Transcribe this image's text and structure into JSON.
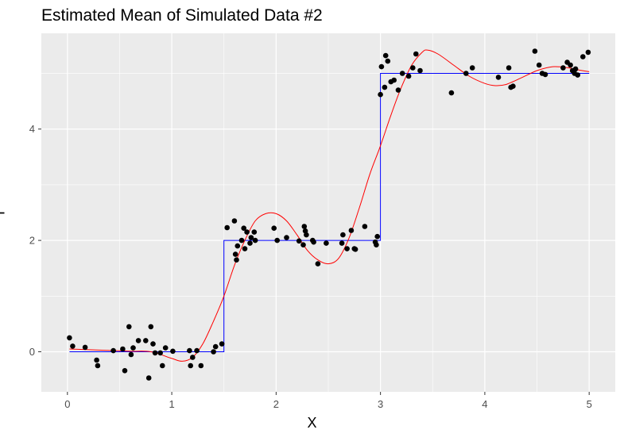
{
  "chart_data": {
    "type": "scatter",
    "title": "Estimated Mean of Simulated Data #2",
    "xlabel": "X",
    "ylabel": "Y",
    "xlim": [
      -0.25,
      5.25
    ],
    "ylim": [
      -0.72,
      5.72
    ],
    "x_ticks": [
      0,
      1,
      2,
      3,
      4,
      5
    ],
    "x_tick_labels": [
      "0",
      "1",
      "2",
      "3",
      "4",
      "5"
    ],
    "y_ticks": [
      0,
      2,
      4
    ],
    "y_tick_labels": [
      "0",
      "2",
      "4"
    ],
    "grid": true,
    "panel_background": "#ebebeb",
    "grid_color": "#ffffff",
    "colors": {
      "points": "#000000",
      "true_mean": "#0000ff",
      "estimated_mean": "#ff0000"
    },
    "series": [
      {
        "kind": "points",
        "points": [
          [
            0.02,
            0.25
          ],
          [
            0.05,
            0.1
          ],
          [
            0.17,
            0.08
          ],
          [
            0.28,
            -0.15
          ],
          [
            0.29,
            -0.25
          ],
          [
            0.44,
            0.02
          ],
          [
            0.53,
            0.05
          ],
          [
            0.55,
            -0.34
          ],
          [
            0.59,
            0.45
          ],
          [
            0.61,
            -0.05
          ],
          [
            0.63,
            0.07
          ],
          [
            0.68,
            0.2
          ],
          [
            0.75,
            0.2
          ],
          [
            0.78,
            -0.47
          ],
          [
            0.8,
            0.45
          ],
          [
            0.82,
            0.14
          ],
          [
            0.84,
            -0.02
          ],
          [
            0.89,
            -0.02
          ],
          [
            0.91,
            -0.25
          ],
          [
            0.94,
            0.07
          ],
          [
            1.01,
            0.01
          ],
          [
            1.17,
            0.02
          ],
          [
            1.18,
            -0.25
          ],
          [
            1.2,
            -0.1
          ],
          [
            1.24,
            0.02
          ],
          [
            1.28,
            -0.25
          ],
          [
            1.4,
            0.0
          ],
          [
            1.42,
            0.09
          ],
          [
            1.48,
            0.14
          ],
          [
            1.53,
            2.23
          ],
          [
            1.6,
            2.35
          ],
          [
            1.61,
            1.75
          ],
          [
            1.62,
            1.65
          ],
          [
            1.63,
            1.9
          ],
          [
            1.67,
            2.0
          ],
          [
            1.69,
            2.22
          ],
          [
            1.7,
            1.85
          ],
          [
            1.72,
            2.15
          ],
          [
            1.75,
            1.95
          ],
          [
            1.76,
            2.05
          ],
          [
            1.79,
            2.15
          ],
          [
            1.8,
            2.0
          ],
          [
            1.98,
            2.22
          ],
          [
            2.01,
            2.0
          ],
          [
            2.1,
            2.05
          ],
          [
            2.22,
            1.99
          ],
          [
            2.26,
            1.92
          ],
          [
            2.27,
            2.25
          ],
          [
            2.28,
            2.17
          ],
          [
            2.29,
            2.1
          ],
          [
            2.35,
            2.0
          ],
          [
            2.36,
            1.97
          ],
          [
            2.4,
            1.58
          ],
          [
            2.48,
            1.95
          ],
          [
            2.63,
            1.95
          ],
          [
            2.64,
            2.1
          ],
          [
            2.68,
            1.85
          ],
          [
            2.72,
            2.18
          ],
          [
            2.75,
            1.85
          ],
          [
            2.76,
            1.84
          ],
          [
            2.85,
            2.25
          ],
          [
            2.95,
            1.97
          ],
          [
            2.96,
            1.92
          ],
          [
            2.97,
            2.07
          ],
          [
            3.0,
            4.62
          ],
          [
            3.01,
            5.12
          ],
          [
            3.04,
            4.75
          ],
          [
            3.05,
            5.32
          ],
          [
            3.07,
            5.22
          ],
          [
            3.1,
            4.85
          ],
          [
            3.13,
            4.88
          ],
          [
            3.17,
            4.7
          ],
          [
            3.21,
            5.0
          ],
          [
            3.27,
            4.95
          ],
          [
            3.31,
            5.1
          ],
          [
            3.34,
            5.35
          ],
          [
            3.38,
            5.05
          ],
          [
            3.68,
            4.65
          ],
          [
            3.82,
            5.0
          ],
          [
            3.88,
            5.1
          ],
          [
            4.13,
            4.93
          ],
          [
            4.23,
            5.1
          ],
          [
            4.25,
            4.75
          ],
          [
            4.27,
            4.77
          ],
          [
            4.48,
            5.4
          ],
          [
            4.52,
            5.15
          ],
          [
            4.55,
            5.0
          ],
          [
            4.58,
            4.98
          ],
          [
            4.75,
            5.1
          ],
          [
            4.79,
            5.2
          ],
          [
            4.82,
            5.15
          ],
          [
            4.84,
            5.05
          ],
          [
            4.86,
            5.0
          ],
          [
            4.87,
            5.08
          ],
          [
            4.89,
            4.97
          ],
          [
            4.94,
            5.3
          ],
          [
            4.99,
            5.38
          ]
        ]
      },
      {
        "kind": "step",
        "points": [
          [
            0.02,
            0
          ],
          [
            1.5,
            0
          ],
          [
            1.5,
            2
          ],
          [
            3,
            2
          ],
          [
            3,
            5
          ],
          [
            5,
            5
          ]
        ]
      },
      {
        "kind": "smooth",
        "points": [
          [
            0.02,
            0.05
          ],
          [
            0.3,
            0.03
          ],
          [
            0.6,
            0.01
          ],
          [
            0.8,
            0.0
          ],
          [
            1.0,
            -0.12
          ],
          [
            1.1,
            -0.17
          ],
          [
            1.2,
            -0.1
          ],
          [
            1.3,
            0.15
          ],
          [
            1.4,
            0.55
          ],
          [
            1.5,
            1.0
          ],
          [
            1.6,
            1.55
          ],
          [
            1.7,
            2.0
          ],
          [
            1.8,
            2.35
          ],
          [
            1.9,
            2.48
          ],
          [
            2.0,
            2.48
          ],
          [
            2.1,
            2.35
          ],
          [
            2.2,
            2.1
          ],
          [
            2.3,
            1.82
          ],
          [
            2.4,
            1.65
          ],
          [
            2.5,
            1.58
          ],
          [
            2.6,
            1.68
          ],
          [
            2.7,
            2.05
          ],
          [
            2.8,
            2.6
          ],
          [
            2.9,
            3.2
          ],
          [
            3.0,
            3.7
          ],
          [
            3.1,
            4.25
          ],
          [
            3.2,
            4.75
          ],
          [
            3.3,
            5.15
          ],
          [
            3.4,
            5.38
          ],
          [
            3.45,
            5.42
          ],
          [
            3.55,
            5.35
          ],
          [
            3.7,
            5.15
          ],
          [
            3.85,
            4.95
          ],
          [
            4.0,
            4.82
          ],
          [
            4.1,
            4.78
          ],
          [
            4.2,
            4.8
          ],
          [
            4.35,
            4.92
          ],
          [
            4.5,
            5.05
          ],
          [
            4.65,
            5.12
          ],
          [
            4.8,
            5.1
          ],
          [
            4.9,
            5.06
          ],
          [
            5.0,
            5.03
          ]
        ]
      }
    ]
  }
}
